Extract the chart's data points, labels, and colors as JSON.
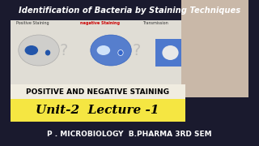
{
  "bg_top": "#1a1a2e",
  "bg_middle": "#f5f0e8",
  "bg_yellow": "#f5e642",
  "bg_bottom": "#1a1a2e",
  "title_text": "Identification of Bacteria by Staining Techniques",
  "title_color": "#ffffff",
  "title_bg": "#1a1a2e",
  "subtitle_text": "POSITIVE AND NEGATIVE STAINING",
  "subtitle_color": "#000000",
  "unit_text": "Unit-2  Lecture -1",
  "unit_color": "#000000",
  "unit_bg": "#f5e642",
  "bottom_text": "P . MICROBIOLOGY  B.PHARMA 3RD SEM",
  "bottom_color": "#ffffff",
  "bottom_bg": "#1a1a2e",
  "diagram_bg": "#e8e8e8",
  "diagram_top_label_color": "#cc0000",
  "figsize": [
    3.2,
    1.8
  ],
  "dpi": 100
}
